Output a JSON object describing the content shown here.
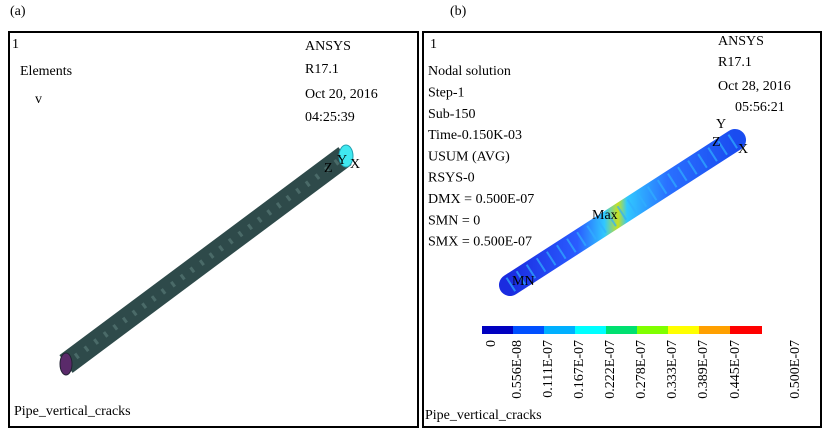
{
  "panels": [
    {
      "label": "(a)",
      "number": "1",
      "lines": [
        "Elements",
        "v"
      ],
      "ansys": [
        "ANSYS",
        "R17.1",
        "Oct 20, 2016",
        "04:25:39"
      ],
      "axes": [
        "Y",
        "Z",
        "X"
      ],
      "footer": "Pipe_vertical_cracks"
    },
    {
      "label": "(b)",
      "number": "1",
      "lines": [
        "Nodal solution",
        "Step-1",
        "Sub-150",
        "Time-0.150K-03",
        "USUM    (AVG)",
        "RSYS-0",
        "DMX = 0.500E-07",
        "SMN = 0",
        "SMX = 0.500E-07"
      ],
      "ansys": [
        "ANSYS",
        "R17.1",
        "Oct 28, 2016",
        "05:56:21"
      ],
      "axes": [
        "Y",
        "Z",
        "X"
      ],
      "max_label": "Max",
      "min_label": "MN",
      "legend_labels": [
        "0",
        "0.556E-08",
        "0.111E-07",
        "0.167E-07",
        "0.222E-07",
        "0.278E-07",
        "0.333E-07",
        "0.389E-07",
        "0.445E-07",
        "0.500E-07"
      ],
      "footer": "Pipe_vertical_cracks"
    }
  ]
}
